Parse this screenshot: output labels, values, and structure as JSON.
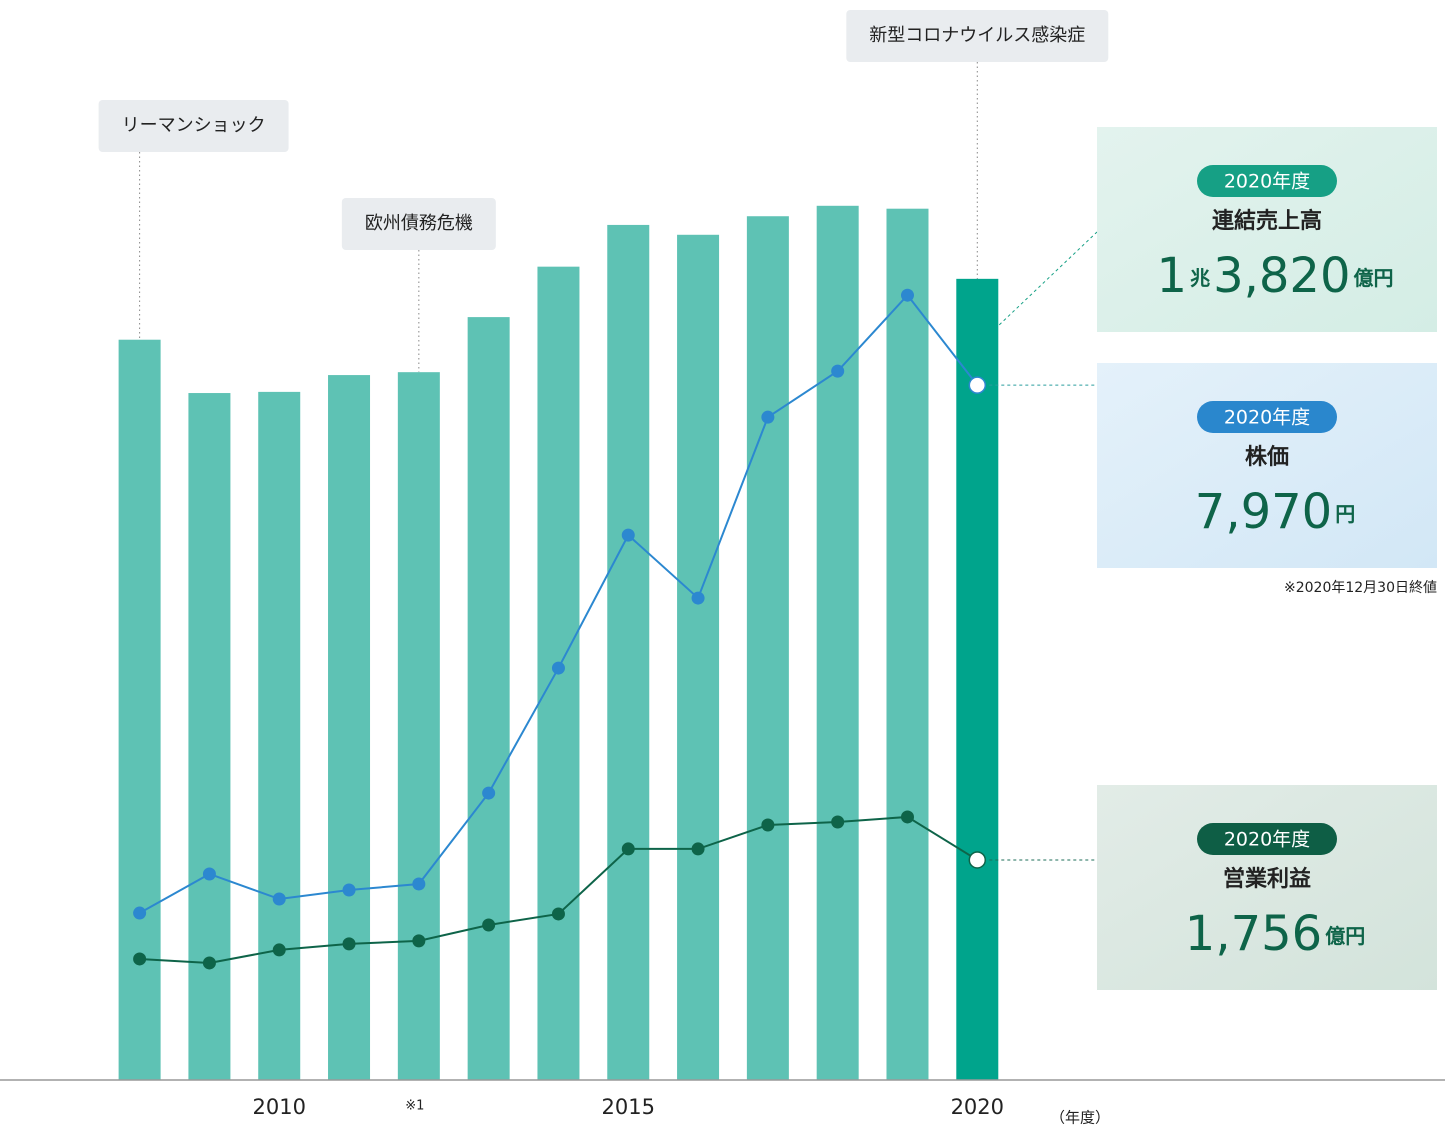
{
  "chart_data": {
    "type": "bar",
    "x": [
      2008,
      2009,
      2010,
      2011,
      2012,
      2013,
      2014,
      2015,
      2016,
      2017,
      2018,
      2019,
      2020
    ],
    "xlim": [
      2006,
      2026.7
    ],
    "xticks": [
      2010,
      2015,
      2020
    ],
    "x_note": {
      "value": 2012,
      "label": "※1"
    },
    "x_axis_label": "（年度）",
    "series": [
      {
        "name": "連結売上高",
        "type": "bar",
        "color": "#5ec2b4",
        "highlight_color": "#00a48c",
        "ylim": [
          0,
          18630
        ],
        "values": [
          12770,
          11850,
          11870,
          12160,
          12210,
          13160,
          14030,
          14750,
          14580,
          14900,
          15080,
          15030,
          13820
        ]
      },
      {
        "name": "株価",
        "type": "line",
        "color": "#2c88d0",
        "ylim": [
          0,
          12388
        ],
        "values": [
          1915,
          2363,
          2076,
          2179,
          2248,
          3291,
          4725,
          6250,
          5528,
          7603,
          8131,
          9002,
          7970
        ]
      },
      {
        "name": "営業利益",
        "type": "line",
        "color": "#0e6449",
        "ylim": [
          0,
          8618
        ],
        "values": [
          966,
          934,
          1038,
          1086,
          1110,
          1237,
          1325,
          1844,
          1844,
          2035,
          2059,
          2099,
          1756
        ]
      }
    ],
    "annotations": [
      {
        "x": 2008,
        "text": "リーマンショック"
      },
      {
        "x": 2012,
        "text": "欧州債務危機"
      },
      {
        "x": 2020,
        "text": "新型コロナウイルス感染症"
      }
    ],
    "panels": [
      {
        "badge": "2020年度",
        "value_parts": [
          "1",
          "兆",
          "3,820",
          "億円"
        ]
      },
      {
        "badge": "2020年度",
        "value_parts": [
          "7,970",
          "円"
        ],
        "note": "※2020年12月30日終値"
      },
      {
        "badge": "2020年度",
        "value_parts": [
          "1,756",
          "億円"
        ]
      }
    ]
  }
}
